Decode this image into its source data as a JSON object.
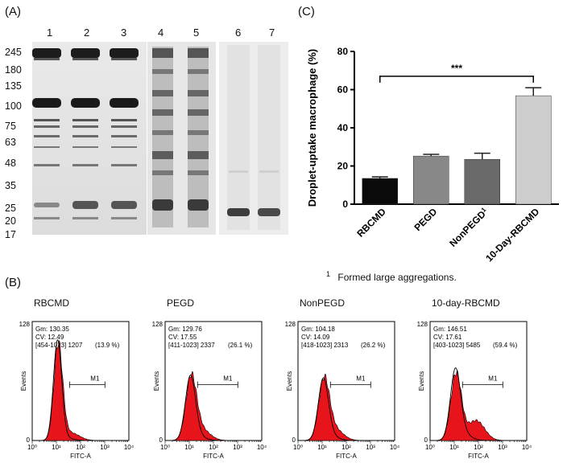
{
  "panels": {
    "a": "(A)",
    "b": "(B)",
    "c": "(C)"
  },
  "gel": {
    "lanes": [
      "1",
      "2",
      "3",
      "4",
      "5",
      "6",
      "7"
    ],
    "markers": [
      "245",
      "180",
      "135",
      "100",
      "75",
      "63",
      "48",
      "35",
      "25",
      "20",
      "17"
    ]
  },
  "bar": {
    "ylabel": "Droplet-uptake macrophage (%)",
    "significance": "***",
    "footnote_mark": "1",
    "footnote_text": "Formed large aggregations.",
    "colors": [
      "#0a0a0a",
      "#888888",
      "#6a6a6a",
      "#cdcdcd"
    ]
  },
  "chart_data": [
    {
      "type": "bar",
      "categories": [
        "RBCMD",
        "PEGD",
        "NonPEGD",
        "10-Day-RBCMD"
      ],
      "category_superscripts": [
        "",
        "",
        "1",
        ""
      ],
      "values": [
        13.5,
        25.2,
        23.5,
        56.8
      ],
      "errors": [
        0.8,
        0.9,
        3.2,
        4.2
      ],
      "ylabel": "Droplet-uptake macrophage (%)",
      "ylim": [
        0,
        80
      ],
      "yticks": [
        0,
        20,
        40,
        60,
        80
      ]
    },
    {
      "type": "area",
      "title": "RBCMD",
      "stats": {
        "gm": "Gm: 130.35",
        "cv": "CV:  12.49",
        "range": "[454-1023] 1207",
        "pct": "(13.9 %)"
      },
      "xlabel": "FITC-A",
      "ylabel": "Events",
      "ymax_label": "128",
      "yzero_label": "0",
      "xticks": [
        "10⁰",
        "10¹",
        "10²",
        "10³",
        "10⁴"
      ],
      "marker": "M1",
      "marker_range": [
        35,
        1023
      ],
      "peak": {
        "x": 12,
        "y": 103
      }
    },
    {
      "type": "area",
      "title": "PEGD",
      "stats": {
        "gm": "Gm: 129.76",
        "cv": "CV:  17.55",
        "range": "[411-1023] 2337",
        "pct": "(26.1 %)"
      },
      "xlabel": "FITC-A",
      "ylabel": "Events",
      "ymax_label": "128",
      "yzero_label": "0",
      "xticks": [
        "10⁰",
        "10¹",
        "10²",
        "10³",
        "10⁴"
      ],
      "marker": "M1",
      "marker_range": [
        22,
        1023
      ],
      "peak": {
        "x": 12,
        "y": 66
      }
    },
    {
      "type": "area",
      "title": "NonPEGD",
      "stats": {
        "gm": "Gm: 104.18",
        "cv": "CV:  14.09",
        "range": "[418-1023] 2313",
        "pct": "(26.2 %)"
      },
      "xlabel": "FITC-A",
      "ylabel": "Events",
      "ymax_label": "128",
      "yzero_label": "0",
      "xticks": [
        "10⁰",
        "10¹",
        "10²",
        "10³",
        "10⁴"
      ],
      "marker": "M1",
      "marker_range": [
        22,
        1023
      ],
      "peak": {
        "x": 12,
        "y": 63
      }
    },
    {
      "type": "area",
      "title": "10-day-RBCMD",
      "stats": {
        "gm": "Gm: 146.51",
        "cv": "CV:  17.61",
        "range": "[403-1023] 5485",
        "pct": "(59.4 %)"
      },
      "xlabel": "FITC-A",
      "ylabel": "Events",
      "ymax_label": "128",
      "yzero_label": "0",
      "xticks": [
        "10⁰",
        "10¹",
        "10²",
        "10³",
        "10⁴"
      ],
      "marker": "M1",
      "marker_range": [
        22,
        1023
      ],
      "peak": {
        "x": 12,
        "y": 72
      }
    }
  ]
}
